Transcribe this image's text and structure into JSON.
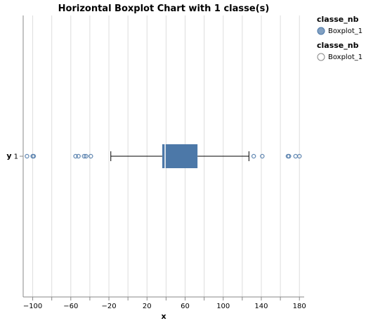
{
  "chart_data": {
    "type": "boxplot",
    "orientation": "horizontal",
    "title": "Horizontal Boxplot Chart with 1 classe(s)",
    "xlabel": "x",
    "ylabel": "y",
    "xlim": [
      -110,
      185
    ],
    "x_ticks": [
      -100,
      -60,
      -20,
      20,
      60,
      100,
      140,
      180
    ],
    "x_minor_ticks": [
      -80,
      -40,
      0,
      40,
      80,
      120,
      160
    ],
    "grid": true,
    "categories": [
      "1"
    ],
    "series": [
      {
        "name": "Boxplot_1",
        "category": "1",
        "whisker_low": -18,
        "q1": 36,
        "median": 39,
        "q3": 73,
        "whisker_high": 127,
        "outliers": [
          -106,
          -100,
          -99,
          -55,
          -52,
          -46,
          -44,
          -39,
          132,
          141,
          168,
          169,
          176,
          180
        ],
        "color": "#4c78a8"
      }
    ],
    "legend": {
      "placement": "top-right",
      "groups": [
        {
          "title": "classe_nb",
          "label": "Boxplot_1",
          "symbol": "filled-circle",
          "color": "#4c78a8"
        },
        {
          "title": "classe_nb",
          "label": "Boxplot_1",
          "symbol": "hollow-circle",
          "color": "#888888"
        }
      ]
    }
  }
}
